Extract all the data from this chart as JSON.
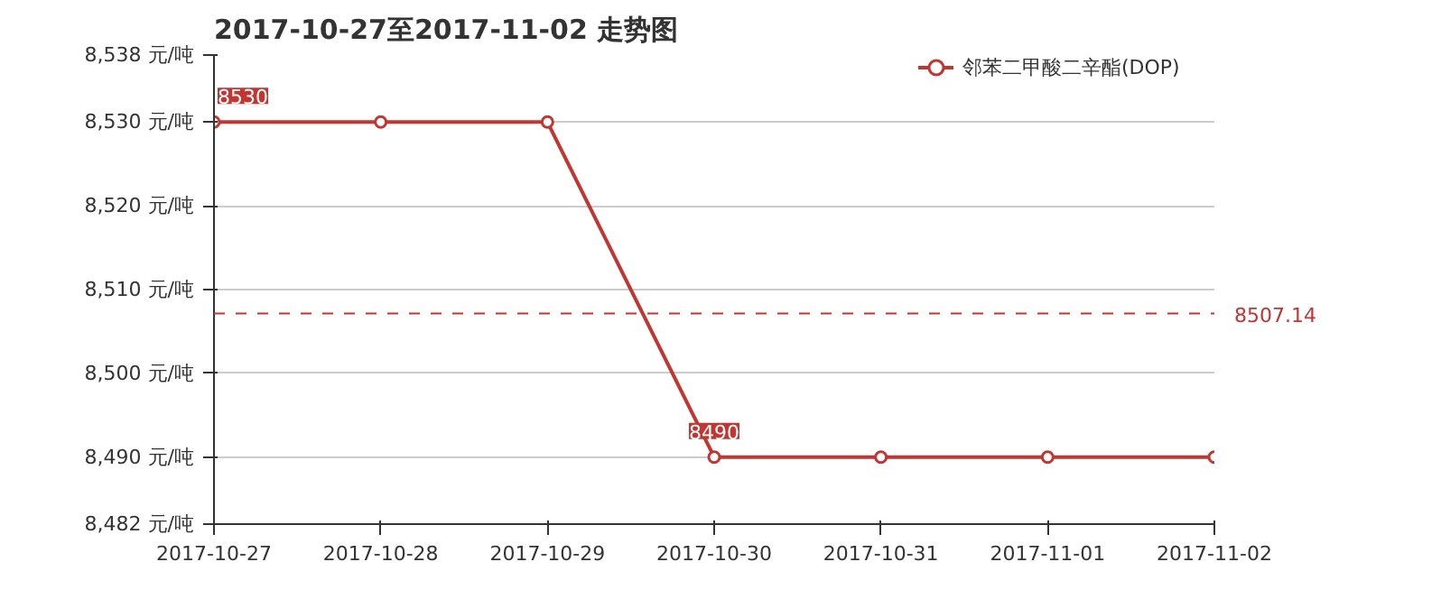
{
  "chart_data": {
    "type": "line",
    "title": "2017-10-27至2017-11-02 走势图",
    "categories": [
      "2017-10-27",
      "2017-10-28",
      "2017-10-29",
      "2017-10-30",
      "2017-10-31",
      "2017-11-01",
      "2017-11-02"
    ],
    "series": [
      {
        "name": "邻苯二甲酸二辛酯(DOP)",
        "color": "#c23531",
        "values": [
          8530,
          8530,
          8530,
          8490,
          8490,
          8490,
          8490
        ]
      }
    ],
    "ylim": [
      8482,
      8538
    ],
    "yticks": [
      {
        "value": 8482,
        "label": "8,482 元/吨"
      },
      {
        "value": 8490,
        "label": "8,490 元/吨"
      },
      {
        "value": 8500,
        "label": "8,500 元/吨"
      },
      {
        "value": 8510,
        "label": "8,510 元/吨"
      },
      {
        "value": 8520,
        "label": "8,520 元/吨"
      },
      {
        "value": 8530,
        "label": "8,530 元/吨"
      },
      {
        "value": 8538,
        "label": "8,538 元/吨"
      }
    ],
    "annotations": [
      {
        "text": "8530",
        "x": "2017-10-27",
        "y": 8530
      },
      {
        "text": "8490",
        "x": "2017-10-30",
        "y": 8490
      }
    ],
    "ref_lines": [
      {
        "axis": "y",
        "value": 8507.14,
        "label": "8507.14",
        "color": "#c23531",
        "line_style": "dashed"
      }
    ],
    "grid": "y",
    "legend": "top right",
    "marker": "circle",
    "line_style": "solid"
  }
}
